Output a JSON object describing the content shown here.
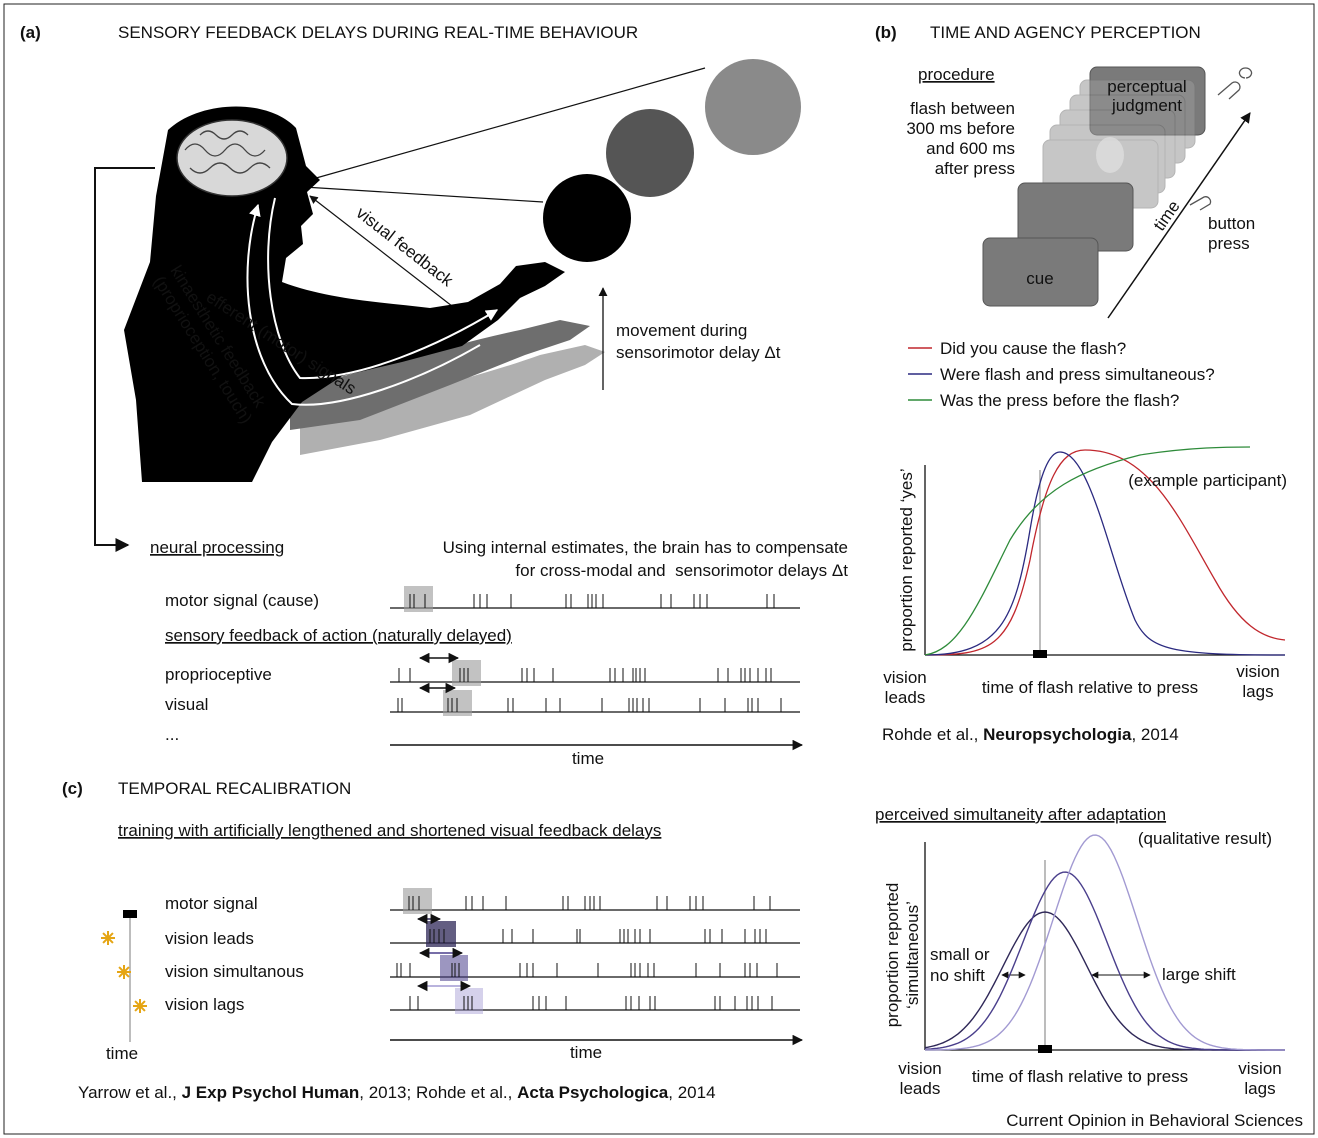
{
  "panel_a": {
    "label": "(a)",
    "title": "SENSORY FEEDBACK DELAYS DURING REAL-TIME BEHAVIOUR",
    "visual_feedback": "visual feedback",
    "efferent_signals": "efferent (motor) signals",
    "kinaesthetic_feedback": [
      "kinaesthetic feedback",
      "(proprioception, touch)"
    ],
    "movement_note": [
      "movement during",
      "sensorimotor delay Δt"
    ],
    "neural_processing": "neural processing",
    "compensation_note": [
      "Using internal estimates, the brain has to compensate",
      "for cross-modal and  sensorimotor delays Δt"
    ],
    "motor_signal": "motor signal (cause)",
    "sensory_feedback_heading": "sensory feedback of action (naturally delayed)",
    "rows": [
      "proprioceptive",
      "visual",
      "..."
    ],
    "time_axis": "time"
  },
  "panel_b": {
    "label": "(b)",
    "title": "TIME AND AGENCY PERCEPTION",
    "procedure": "procedure",
    "flash_window": [
      "flash between",
      "300 ms before",
      "and 600 ms",
      "after press"
    ],
    "judgment_card": [
      "perceptual",
      "judgment"
    ],
    "cue_card": "cue",
    "time_arrow": "time",
    "button_press": [
      "button",
      "press"
    ],
    "questions": [
      {
        "text": "Did you cause the flash?",
        "color": "#c1272d"
      },
      {
        "text": "Were flash and press simultaneous?",
        "color": "#2b2a80"
      },
      {
        "text": "Was the press before the flash?",
        "color": "#2e8b3a"
      }
    ],
    "graph": {
      "note": "(example participant)",
      "y_label": "proportion reported ‘yes’",
      "x_left": [
        "vision",
        "leads"
      ],
      "x_label": "time of flash relative to press",
      "x_right": [
        "vision",
        "lags"
      ]
    },
    "citation": {
      "authors": "Rohde et al., ",
      "journal": "Neuropsychologia",
      "year": ", 2014"
    }
  },
  "panel_c": {
    "label": "(c)",
    "title": "TEMPORAL RECALIBRATION",
    "training_heading": "training with artificially lengthened and shortened visual feedback delays",
    "motor_signal": "motor signal",
    "rows": [
      {
        "text": "vision leads",
        "color": "#2f2858"
      },
      {
        "text": "vision simultanous",
        "color": "#4a3f8c"
      },
      {
        "text": "vision lags",
        "color": "#a29ad2"
      }
    ],
    "time_vertical": "time",
    "time_axis": "time",
    "citation": {
      "a1": "Yarrow et al., ",
      "j1": "J Exp Psychol Human",
      "a2": ", 2013; Rohde et al., ",
      "j2": "Acta Psychologica",
      "y2": ", 2014"
    }
  },
  "adaptation": {
    "heading": "perceived simultaneity after adaptation",
    "note": "(qualitative result)",
    "y_label": [
      "proportion reported",
      "‘simultaneous’"
    ],
    "small_shift": [
      "small or",
      "no shift"
    ],
    "large_shift": "large shift",
    "x_left": [
      "vision",
      "leads"
    ],
    "x_label": "time of flash relative to press",
    "x_right": [
      "vision",
      "lags"
    ]
  },
  "footer": "Current Opinion in Behavioral Sciences"
}
